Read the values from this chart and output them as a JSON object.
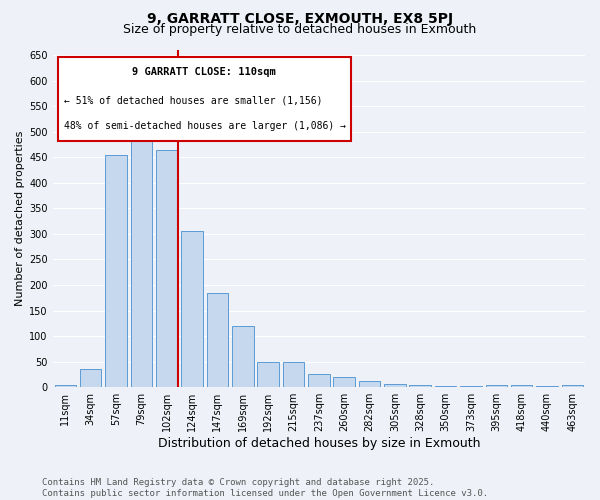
{
  "title": "9, GARRATT CLOSE, EXMOUTH, EX8 5PJ",
  "subtitle": "Size of property relative to detached houses in Exmouth",
  "xlabel": "Distribution of detached houses by size in Exmouth",
  "ylabel": "Number of detached properties",
  "categories": [
    "11sqm",
    "34sqm",
    "57sqm",
    "79sqm",
    "102sqm",
    "124sqm",
    "147sqm",
    "169sqm",
    "192sqm",
    "215sqm",
    "237sqm",
    "260sqm",
    "282sqm",
    "305sqm",
    "328sqm",
    "350sqm",
    "373sqm",
    "395sqm",
    "418sqm",
    "440sqm",
    "463sqm"
  ],
  "values": [
    5,
    35,
    455,
    525,
    465,
    305,
    185,
    120,
    50,
    50,
    25,
    20,
    12,
    7,
    5,
    3,
    2,
    5,
    5,
    3,
    4
  ],
  "bar_color": "#c5d8ed",
  "bar_edge_color": "#5b9bd5",
  "property_line_color": "#cc0000",
  "annotation_title": "9 GARRATT CLOSE: 110sqm",
  "annotation_line1": "← 51% of detached houses are smaller (1,156)",
  "annotation_line2": "48% of semi-detached houses are larger (1,086) →",
  "annotation_box_color": "#cc0000",
  "ylim": [
    0,
    660
  ],
  "yticks": [
    0,
    50,
    100,
    150,
    200,
    250,
    300,
    350,
    400,
    450,
    500,
    550,
    600,
    650
  ],
  "footer_line1": "Contains HM Land Registry data © Crown copyright and database right 2025.",
  "footer_line2": "Contains public sector information licensed under the Open Government Licence v3.0.",
  "background_color": "#eef2f8",
  "grid_color": "#ffffff",
  "title_fontsize": 10,
  "subtitle_fontsize": 9,
  "tick_fontsize": 7,
  "ylabel_fontsize": 8,
  "xlabel_fontsize": 9,
  "footer_fontsize": 6.5
}
